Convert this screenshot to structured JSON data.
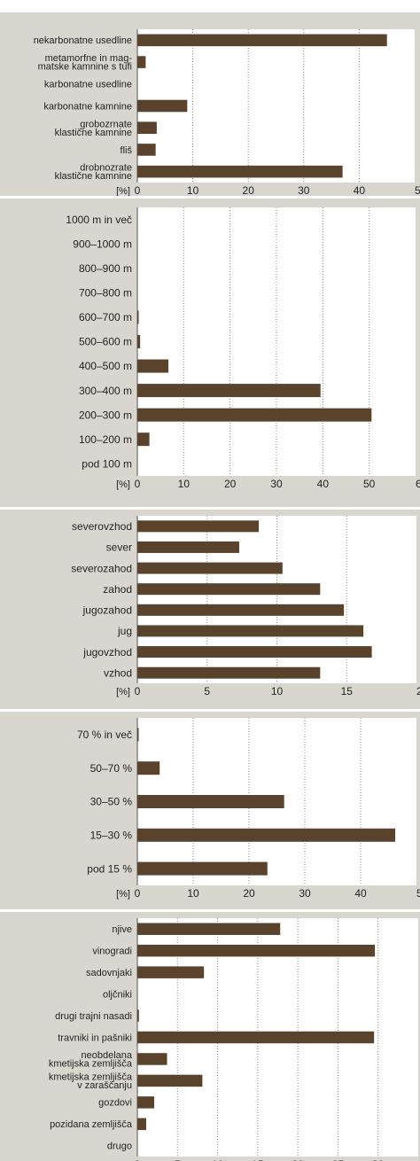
{
  "colors": {
    "panel": "#d9d6d0",
    "plot": "#ffffff",
    "bar": "#59432c",
    "grid": "#8a8a8a",
    "text": "#222222"
  },
  "chart_data": [
    {
      "type": "bar",
      "orientation": "horizontal",
      "categories": [
        "nekarbonatne usedline",
        "metamorfne in mag-matske kamnine s tufi",
        "karbonatne usedline",
        "karbonatne kamnine",
        "grobozrnate klastične kamnine",
        "fliš",
        "drobnozrate klastične kamnine"
      ],
      "category_lines": [
        [
          "nekarbonatne usedline"
        ],
        [
          "metamorfne in mag-",
          "matske kamnine s tufi"
        ],
        [
          "karbonatne usedline"
        ],
        [
          "karbonatne kamnine"
        ],
        [
          "grobozrnate",
          "klastične kamnine"
        ],
        [
          "fliš"
        ],
        [
          "drobnozrate",
          "klastične kamnine"
        ]
      ],
      "values": [
        45,
        1.5,
        0,
        9,
        3.5,
        3.3,
        37
      ],
      "xlabel": "[%]",
      "xlim": [
        0,
        50
      ],
      "xticks": [
        "0",
        "10",
        "20",
        "30",
        "40",
        "50"
      ],
      "grid": true
    },
    {
      "type": "bar",
      "orientation": "horizontal",
      "categories": [
        "1000 m in več",
        "900–1000 m",
        "800–900 m",
        "700–800 m",
        "600–700 m",
        "500–600 m",
        "400–500 m",
        "300–400 m",
        "200–300 m",
        "100–200 m",
        "pod 100 m"
      ],
      "values": [
        0,
        0,
        0,
        0,
        0.2,
        0.6,
        6.7,
        39.5,
        50.5,
        2.6,
        0
      ],
      "xlabel": "[%]",
      "xlim": [
        0,
        60
      ],
      "xticks": [
        "0",
        "10",
        "20",
        "30",
        "40",
        "50",
        "60"
      ],
      "grid": true
    },
    {
      "type": "bar",
      "orientation": "horizontal",
      "categories": [
        "severovzhod",
        "sever",
        "severozahod",
        "zahod",
        "jugozahod",
        "jug",
        "jugovzhod",
        "vzhod"
      ],
      "values": [
        8.7,
        7.3,
        10.4,
        13.1,
        14.8,
        16.2,
        16.8,
        13.1
      ],
      "xlabel": "[%]",
      "xlim": [
        0,
        20
      ],
      "xticks": [
        "0",
        "5",
        "10",
        "15",
        "20"
      ],
      "grid": true
    },
    {
      "type": "bar",
      "orientation": "horizontal",
      "categories": [
        "70 % in več",
        "50–70 %",
        "30–50 %",
        "15–30 %",
        "pod 15 %"
      ],
      "values": [
        0.2,
        4,
        26.3,
        46.2,
        23.3
      ],
      "xlabel": "[%]",
      "xlim": [
        0,
        50
      ],
      "xticks": [
        "0",
        "10",
        "20",
        "30",
        "40",
        "50"
      ],
      "grid": true
    },
    {
      "type": "bar",
      "orientation": "horizontal",
      "categories": [
        "njive",
        "vinogradi",
        "sadovnjaki",
        "oljčniki",
        "drugi trajni nasadi",
        "travniki in pašniki",
        "neobdelana kmetijska zemljišča",
        "kmetijska zemljišča v zaraščanju",
        "gozdovi",
        "pozidana zemljišča",
        "drugo"
      ],
      "category_lines": [
        [
          "njive"
        ],
        [
          "vinogradi"
        ],
        [
          "sadovnjaki"
        ],
        [
          "oljčniki"
        ],
        [
          "drugi trajni nasadi"
        ],
        [
          "travniki in pašniki"
        ],
        [
          "neobdelana",
          "kmetijska zemljišča"
        ],
        [
          "kmetijska zemljišča",
          "v zaraščanju"
        ],
        [
          "gozdovi"
        ],
        [
          "pozidana zemljišča"
        ],
        [
          "drugo"
        ]
      ],
      "values": [
        17.8,
        29.6,
        8.3,
        0,
        0.2,
        29.5,
        3.7,
        8.1,
        2.1,
        1.1,
        0
      ],
      "xlabel": "[%]",
      "xlim": [
        0,
        35
      ],
      "xticks": [
        "0",
        "5",
        "10",
        "15",
        "20",
        "25",
        "30",
        "35"
      ],
      "grid": true
    }
  ]
}
